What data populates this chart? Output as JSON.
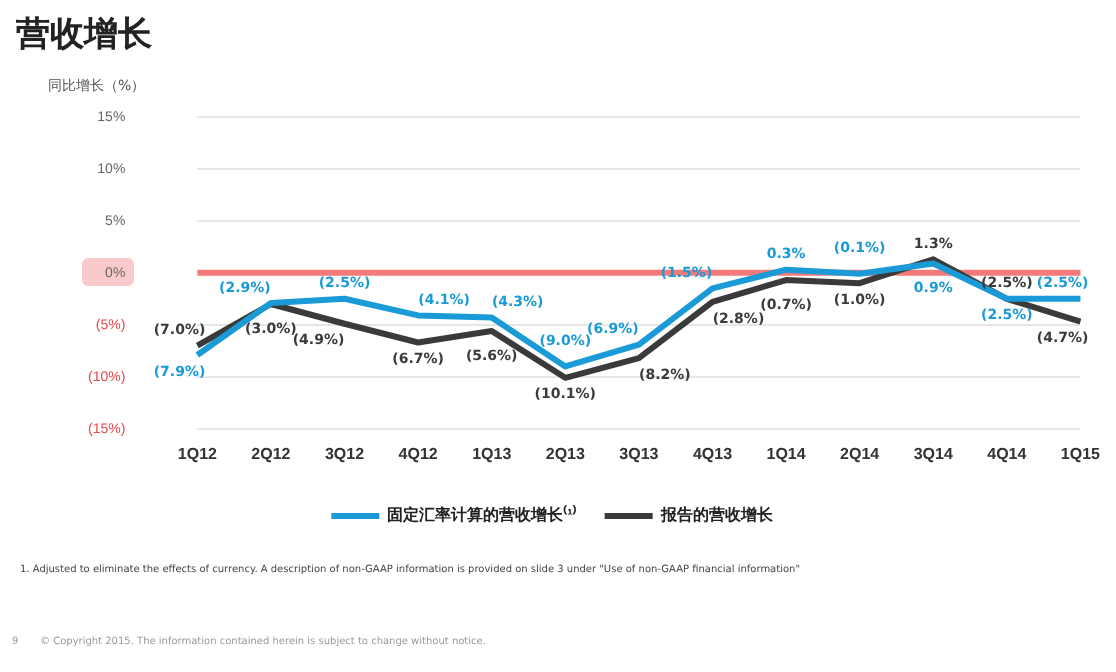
{
  "chart_data": {
    "type": "line",
    "title": "营收增长",
    "ylabel": "同比增长（%）",
    "categories": [
      "1Q12",
      "2Q12",
      "3Q12",
      "4Q12",
      "1Q13",
      "2Q13",
      "3Q13",
      "4Q13",
      "1Q14",
      "2Q14",
      "3Q14",
      "4Q14",
      "1Q15"
    ],
    "series": [
      {
        "name": "固定汇率计算的营收增长⁽¹⁾",
        "color": "#1a9ad6",
        "values": [
          -7.9,
          -2.9,
          -2.5,
          -4.1,
          -4.3,
          -9.0,
          -6.9,
          -1.5,
          0.3,
          -0.1,
          0.9,
          -2.5,
          -2.5
        ],
        "value_labels": [
          "(7.9%)",
          "(2.9%)",
          "(2.5%)",
          "(4.1%)",
          "(4.3%)",
          "(9.0%)",
          "(6.9%)",
          "(1.5%)",
          "0.3%",
          "(0.1%)",
          "0.9%",
          "(2.5%)",
          "(2.5%)"
        ]
      },
      {
        "name": "报告的营收增长",
        "color": "#3a3a3a",
        "values": [
          -7.0,
          -3.0,
          -4.9,
          -6.7,
          -5.6,
          -10.1,
          -8.2,
          -2.8,
          -0.7,
          -1.0,
          1.3,
          -2.5,
          -4.7
        ],
        "value_labels": [
          "(7.0%)",
          "(3.0%)",
          "(4.9%)",
          "(6.7%)",
          "(5.6%)",
          "(10.1%)",
          "(8.2%)",
          "(2.8%)",
          "(0.7%)",
          "(1.0%)",
          "1.3%",
          "(2.5%)",
          "(4.7%)"
        ]
      }
    ],
    "ylim": [
      -15,
      15
    ],
    "yticks": [
      {
        "value": -15,
        "label": "(15%)"
      },
      {
        "value": -10,
        "label": "(10%)"
      },
      {
        "value": -5,
        "label": "(5%)"
      },
      {
        "value": 0,
        "label": "0%"
      },
      {
        "value": 5,
        "label": "5%"
      },
      {
        "value": 10,
        "label": "10%"
      },
      {
        "value": 15,
        "label": "15%"
      }
    ],
    "grid": "y",
    "legend": "bottom",
    "marker": "none",
    "line_style": "solid",
    "ref_lines": [
      {
        "axis": "y",
        "value": 0,
        "color": "#f47a7a"
      }
    ],
    "annotations": [
      "1.  Adjusted to eliminate the effects of currency.  A description of non-GAAP information is provided on slide 3 under \"Use of non-GAAP financial information\"",
      "9",
      "© Copyright 2015. The information contained herein is subject to change without notice."
    ]
  }
}
